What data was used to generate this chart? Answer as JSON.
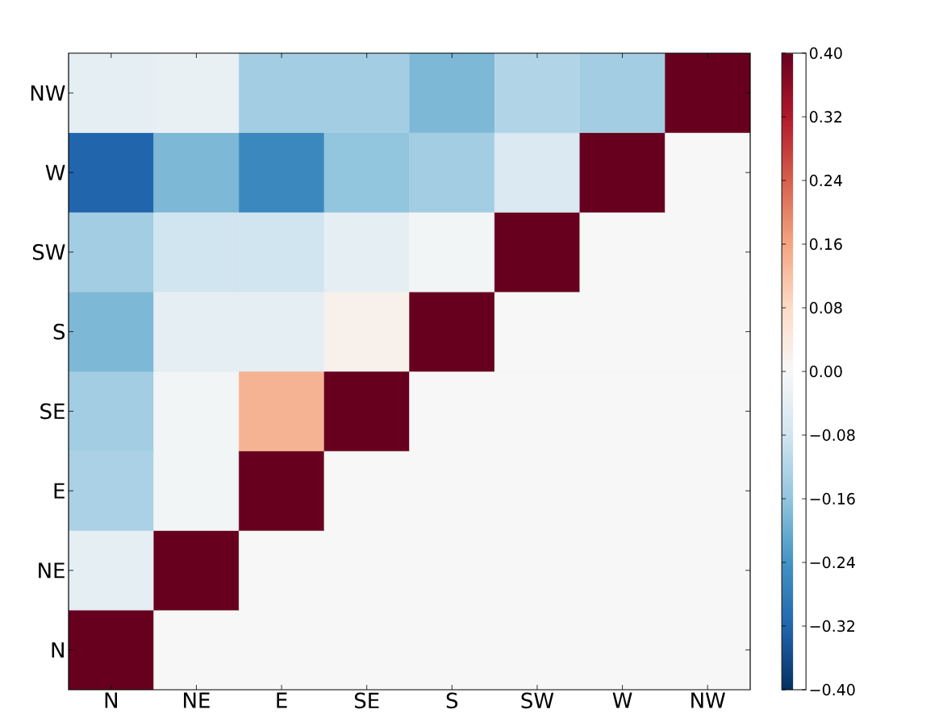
{
  "chart_data": {
    "type": "heatmap",
    "categories": [
      "N",
      "NE",
      "E",
      "SE",
      "S",
      "SW",
      "W",
      "NW"
    ],
    "y_categories": [
      "NW",
      "W",
      "SW",
      "S",
      "SE",
      "E",
      "NE",
      "N"
    ],
    "cells": [
      [
        -0.04,
        -0.03,
        -0.14,
        -0.14,
        -0.18,
        -0.12,
        -0.14,
        0.4
      ],
      [
        -0.32,
        -0.18,
        -0.26,
        -0.16,
        -0.14,
        -0.06,
        0.4,
        0
      ],
      [
        -0.14,
        -0.08,
        -0.08,
        -0.04,
        -0.01,
        0.4,
        0,
        0
      ],
      [
        -0.18,
        -0.04,
        -0.04,
        0.02,
        0.4,
        0,
        0,
        0
      ],
      [
        -0.14,
        -0.01,
        0.14,
        0.4,
        0,
        0,
        0,
        0
      ],
      [
        -0.13,
        -0.01,
        0.4,
        0,
        0,
        0,
        0,
        0
      ],
      [
        -0.04,
        0.4,
        0,
        0,
        0,
        0,
        0,
        0
      ],
      [
        0.4,
        0,
        0,
        0,
        0,
        0,
        0,
        0
      ]
    ],
    "clim": [
      -0.4,
      0.4
    ],
    "cticks": [
      {
        "value": -0.4,
        "label": "−0.40"
      },
      {
        "value": -0.32,
        "label": "−0.32"
      },
      {
        "value": -0.24,
        "label": "−0.24"
      },
      {
        "value": -0.16,
        "label": "−0.16"
      },
      {
        "value": -0.08,
        "label": "−0.08"
      },
      {
        "value": 0,
        "label": "0.00"
      },
      {
        "value": 0.08,
        "label": "0.08"
      },
      {
        "value": 0.16,
        "label": "0.16"
      },
      {
        "value": 0.24,
        "label": "0.24"
      },
      {
        "value": 0.32,
        "label": "0.32"
      },
      {
        "value": 0.4,
        "label": "0.40"
      }
    ]
  }
}
